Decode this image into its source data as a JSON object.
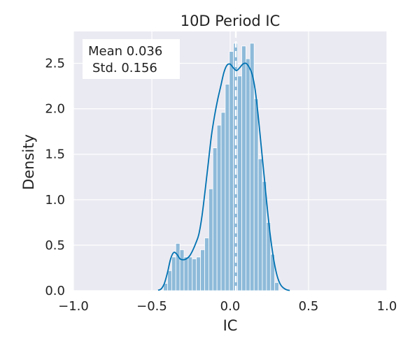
{
  "chart_data": {
    "type": "histogram",
    "title": "10D Period IC",
    "xlabel": "IC",
    "ylabel": "Density",
    "xlim": [
      -1.0,
      1.0
    ],
    "ylim": [
      0.0,
      2.85
    ],
    "xticks": [
      -1.0,
      -0.5,
      0.0,
      0.5,
      1.0
    ],
    "xtick_labels": [
      "−1.0",
      "−0.5",
      "0.0",
      "0.5",
      "1.0"
    ],
    "yticks": [
      0.0,
      0.5,
      1.0,
      1.5,
      2.0,
      2.5
    ],
    "ytick_labels": [
      "0.0",
      "0.5",
      "1.0",
      "1.5",
      "2.0",
      "2.5"
    ],
    "grid": true,
    "background_color": "#EAEAF2",
    "bar_color": "#8EBAD9",
    "kde_color": "#0072B2",
    "mean_line_color": "#FFFFFF",
    "mean_line_x": 0.036,
    "annotation": {
      "line1": "Mean 0.036",
      "line2": "Std. 0.156"
    },
    "bins": {
      "x_start": -0.426,
      "bin_width": 0.0263,
      "heights": [
        0.08,
        0.22,
        0.37,
        0.52,
        0.45,
        0.37,
        0.37,
        0.35,
        0.37,
        0.45,
        0.58,
        1.12,
        1.57,
        1.82,
        1.96,
        2.27,
        2.63,
        2.72,
        2.36,
        2.69,
        2.55,
        2.72,
        2.11,
        1.45,
        1.2,
        0.75,
        0.4,
        0.09
      ]
    },
    "kde": {
      "x": [
        -0.46,
        -0.44,
        -0.42,
        -0.4,
        -0.38,
        -0.36,
        -0.34,
        -0.32,
        -0.3,
        -0.28,
        -0.26,
        -0.24,
        -0.22,
        -0.2,
        -0.18,
        -0.16,
        -0.14,
        -0.12,
        -0.1,
        -0.08,
        -0.06,
        -0.04,
        -0.02,
        0.0,
        0.02,
        0.04,
        0.06,
        0.08,
        0.1,
        0.12,
        0.14,
        0.16,
        0.18,
        0.2,
        0.22,
        0.24,
        0.26,
        0.28,
        0.3,
        0.32,
        0.34,
        0.36,
        0.38
      ],
      "y": [
        0.005,
        0.02,
        0.08,
        0.2,
        0.35,
        0.42,
        0.4,
        0.35,
        0.34,
        0.35,
        0.38,
        0.44,
        0.52,
        0.62,
        0.82,
        1.1,
        1.4,
        1.7,
        1.92,
        2.1,
        2.25,
        2.4,
        2.48,
        2.49,
        2.45,
        2.42,
        2.45,
        2.49,
        2.5,
        2.46,
        2.38,
        2.2,
        1.9,
        1.55,
        1.2,
        0.85,
        0.55,
        0.32,
        0.16,
        0.07,
        0.03,
        0.01,
        0.003
      ]
    }
  }
}
